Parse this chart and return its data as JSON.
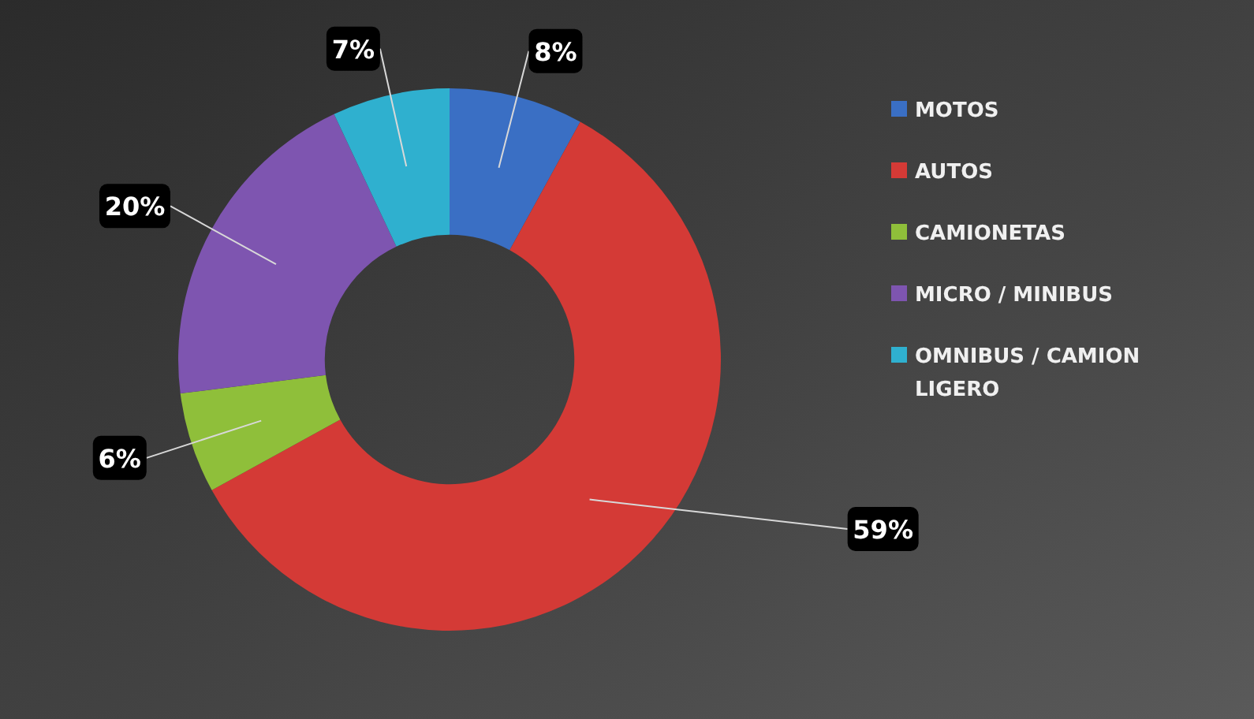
{
  "chart_data": {
    "type": "donut",
    "categories": [
      "MOTOS",
      "AUTOS",
      "CAMIONETAS",
      "MICRO / MINIBUS",
      "OMNIBUS / CAMION LIGERO"
    ],
    "values": [
      8,
      59,
      6,
      20,
      7
    ],
    "colors": [
      "#3a6fc4",
      "#d43a36",
      "#8fbf3a",
      "#7e55b0",
      "#2fb0cf"
    ],
    "value_labels": [
      "8%",
      "59%",
      "6%",
      "20%",
      "7%"
    ],
    "legend": "right"
  }
}
